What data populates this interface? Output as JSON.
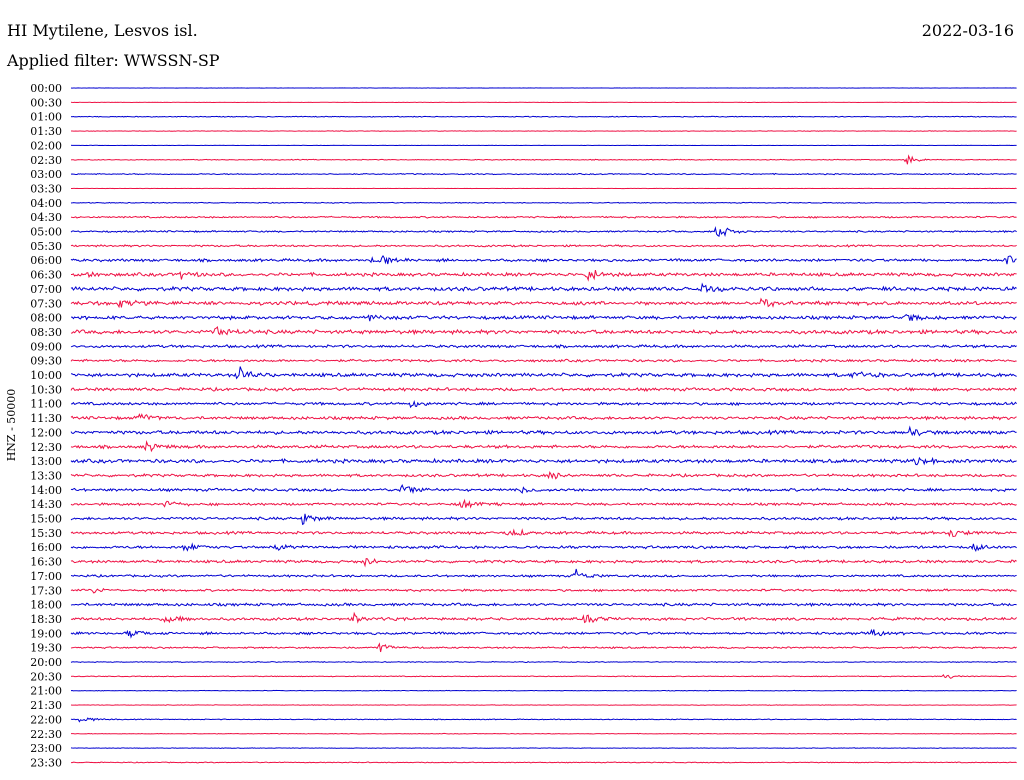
{
  "header": {
    "station": "HI Mytilene, Lesvos isl.",
    "filter": "Applied filter: WWSSN-SP",
    "date": "2022-03-16"
  },
  "colors": {
    "even": "#0000d0",
    "odd": "#ee1144"
  },
  "chart_data": {
    "type": "line",
    "title": "HI Mytilene, Lesvos isl.",
    "ylabel": "HNZ - 50000",
    "row_labels": [
      "00:00",
      "00:30",
      "01:00",
      "01:30",
      "02:00",
      "02:30",
      "03:00",
      "03:30",
      "04:00",
      "04:30",
      "05:00",
      "05:30",
      "06:00",
      "06:30",
      "07:00",
      "07:30",
      "08:00",
      "08:30",
      "09:00",
      "09:30",
      "10:00",
      "10:30",
      "11:00",
      "11:30",
      "12:00",
      "12:30",
      "13:00",
      "13:30",
      "14:00",
      "14:30",
      "15:00",
      "15:30",
      "16:00",
      "16:30",
      "17:00",
      "17:30",
      "18:00",
      "18:30",
      "19:00",
      "19:30",
      "20:00",
      "20:30",
      "21:00",
      "21:30",
      "22:00",
      "22:30",
      "23:00",
      "23:30"
    ],
    "noise_levels": [
      0.1,
      0.1,
      0.3,
      0.2,
      0.1,
      0.3,
      0.4,
      0.1,
      0.3,
      0.6,
      0.6,
      0.7,
      1.0,
      1.2,
      1.4,
      1.3,
      1.2,
      1.4,
      1.0,
      0.9,
      1.3,
      1.1,
      1.0,
      1.1,
      1.3,
      1.1,
      1.3,
      1.0,
      1.0,
      0.9,
      1.0,
      1.0,
      1.0,
      1.0,
      0.8,
      0.8,
      1.0,
      1.0,
      0.9,
      0.6,
      0.3,
      0.3,
      0.2,
      0.2,
      0.3,
      0.2,
      0.2,
      0.3
    ],
    "events": [
      {
        "row": 5,
        "minute": 26.5,
        "amp": 6
      },
      {
        "row": 10,
        "minute": 20.5,
        "amp": 12
      },
      {
        "row": 12,
        "minute": 9.5,
        "amp": 4
      },
      {
        "row": 12,
        "minute": 9.9,
        "amp": 5
      },
      {
        "row": 12,
        "minute": 29.7,
        "amp": 5
      },
      {
        "row": 13,
        "minute": 0.3,
        "amp": 4
      },
      {
        "row": 13,
        "minute": 3.5,
        "amp": 4
      },
      {
        "row": 13,
        "minute": 16.4,
        "amp": 9
      },
      {
        "row": 14,
        "minute": 20.0,
        "amp": 6
      },
      {
        "row": 15,
        "minute": 1.5,
        "amp": 6
      },
      {
        "row": 15,
        "minute": 21.9,
        "amp": 6
      },
      {
        "row": 16,
        "minute": 9.5,
        "amp": 4
      },
      {
        "row": 16,
        "minute": 26.5,
        "amp": 4
      },
      {
        "row": 17,
        "minute": 4.6,
        "amp": 7
      },
      {
        "row": 20,
        "minute": 5.3,
        "amp": 9
      },
      {
        "row": 20,
        "minute": 24.8,
        "amp": 5
      },
      {
        "row": 22,
        "minute": 10.8,
        "amp": 5
      },
      {
        "row": 23,
        "minute": 2.2,
        "amp": 7
      },
      {
        "row": 24,
        "minute": 26.6,
        "amp": 5
      },
      {
        "row": 25,
        "minute": 2.4,
        "amp": 5
      },
      {
        "row": 26,
        "minute": 26.8,
        "amp": 6
      },
      {
        "row": 27,
        "minute": 15.2,
        "amp": 5
      },
      {
        "row": 28,
        "minute": 10.5,
        "amp": 6
      },
      {
        "row": 28,
        "minute": 14.3,
        "amp": 4
      },
      {
        "row": 29,
        "minute": 3.0,
        "amp": 5
      },
      {
        "row": 29,
        "minute": 12.4,
        "amp": 6
      },
      {
        "row": 30,
        "minute": 7.3,
        "amp": 8
      },
      {
        "row": 31,
        "minute": 13.9,
        "amp": 6
      },
      {
        "row": 31,
        "minute": 27.9,
        "amp": 5
      },
      {
        "row": 32,
        "minute": 3.6,
        "amp": 5
      },
      {
        "row": 32,
        "minute": 6.5,
        "amp": 5
      },
      {
        "row": 32,
        "minute": 28.6,
        "amp": 5
      },
      {
        "row": 33,
        "minute": 9.3,
        "amp": 5
      },
      {
        "row": 34,
        "minute": 16.0,
        "amp": 8
      },
      {
        "row": 35,
        "minute": 0.6,
        "amp": 4
      },
      {
        "row": 37,
        "minute": 3.0,
        "amp": 5
      },
      {
        "row": 37,
        "minute": 9.0,
        "amp": 6
      },
      {
        "row": 37,
        "minute": 16.3,
        "amp": 5
      },
      {
        "row": 38,
        "minute": 1.8,
        "amp": 5
      },
      {
        "row": 38,
        "minute": 25.4,
        "amp": 4
      },
      {
        "row": 39,
        "minute": 9.8,
        "amp": 5
      },
      {
        "row": 41,
        "minute": 27.7,
        "amp": 4
      },
      {
        "row": 44,
        "minute": 0.3,
        "amp": 4
      }
    ],
    "xlim": [
      0,
      30
    ],
    "grid": false
  }
}
